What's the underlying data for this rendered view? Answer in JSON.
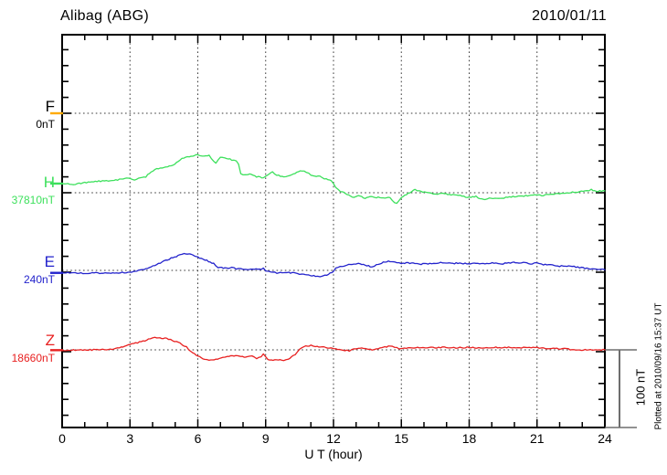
{
  "header": {
    "station": "Alibag (ABG)",
    "date": "2010/01/11"
  },
  "x_axis": {
    "label": "U T (hour)",
    "ticks": [
      "0",
      "3",
      "6",
      "9",
      "12",
      "15",
      "18",
      "21",
      "24"
    ]
  },
  "scale_bar": {
    "label": "100 nT",
    "value_nT": 100
  },
  "footer_note": "Plotted at 2010/09/16 15:37 UT",
  "chart_data": {
    "type": "line",
    "title": "Alibag (ABG) geomagnetic components magnetogram, 2010/01/11",
    "xlabel": "U T (hour)",
    "x_range": [
      0,
      24
    ],
    "x_major_tick": 3,
    "x_minor_tick": 1,
    "grid": "dotted verticals every 3 h, dotted horizontal baselines per component",
    "scale_bar_nT": 100,
    "minor_tick_nT": 20,
    "baseline_separation_nT": 100,
    "points_format": "[hour_UT, offset_nT_from_baseline]",
    "series": [
      {
        "name": "F",
        "baseline_label": "0nT",
        "baseline_nT": 0,
        "color": "#FFAA00",
        "points": []
      },
      {
        "name": "H",
        "baseline_label": "37810nT",
        "baseline_nT": 37810,
        "color": "#3DE05C",
        "points": [
          [
            0,
            11.8
          ],
          [
            0.5,
            10.6
          ],
          [
            1,
            13
          ],
          [
            1.7,
            15
          ],
          [
            2.3,
            16
          ],
          [
            3,
            19.2
          ],
          [
            3.2,
            16.8
          ],
          [
            3.7,
            20.8
          ],
          [
            4.1,
            30.6
          ],
          [
            4.5,
            32.6
          ],
          [
            4.9,
            35.6
          ],
          [
            5.3,
            44.3
          ],
          [
            5.7,
            47.4
          ],
          [
            6,
            49
          ],
          [
            6.2,
            47
          ],
          [
            6.5,
            48.2
          ],
          [
            6.7,
            40.4
          ],
          [
            6.8,
            38.5
          ],
          [
            7,
            46.2
          ],
          [
            7.2,
            45
          ],
          [
            7.5,
            42.4
          ],
          [
            7.7,
            41.2
          ],
          [
            7.8,
            36.5
          ],
          [
            7.9,
            24.7
          ],
          [
            8.1,
            22.7
          ],
          [
            8.3,
            23.9
          ],
          [
            8.6,
            20.8
          ],
          [
            8.9,
            19.6
          ],
          [
            9,
            21.5
          ],
          [
            9.2,
            25.5
          ],
          [
            9.3,
            26.7
          ],
          [
            9.5,
            22.7
          ],
          [
            9.8,
            20.8
          ],
          [
            10,
            22
          ],
          [
            10.3,
            25.5
          ],
          [
            10.6,
            28.6
          ],
          [
            10.8,
            26.7
          ],
          [
            11,
            22.7
          ],
          [
            11.4,
            20.8
          ],
          [
            11.6,
            18
          ],
          [
            11.9,
            16.1
          ],
          [
            12.1,
            7.1
          ],
          [
            12.3,
            2
          ],
          [
            12.6,
            -2
          ],
          [
            12.9,
            -5.9
          ],
          [
            13.1,
            -3.9
          ],
          [
            13.4,
            -6.7
          ],
          [
            13.7,
            -4.7
          ],
          [
            13.9,
            -5.9
          ],
          [
            14.2,
            -6.7
          ],
          [
            14.5,
            -5.9
          ],
          [
            14.7,
            -12.6
          ],
          [
            14.8,
            -13.8
          ],
          [
            15,
            -6.7
          ],
          [
            15.3,
            -0.8
          ],
          [
            15.6,
            3.9
          ],
          [
            15.8,
            2
          ],
          [
            16.1,
            0.4
          ],
          [
            16.4,
            -0.8
          ],
          [
            16.6,
            -2
          ],
          [
            16.9,
            -0.8
          ],
          [
            17.2,
            -2.7
          ],
          [
            17.6,
            -3.9
          ],
          [
            18,
            -5.9
          ],
          [
            18.3,
            -4.7
          ],
          [
            18.4,
            -7.4
          ],
          [
            18.7,
            -8.6
          ],
          [
            18.9,
            -6.7
          ],
          [
            19.3,
            -7.4
          ],
          [
            19.7,
            -5.9
          ],
          [
            20.1,
            -4.7
          ],
          [
            20.5,
            -3.9
          ],
          [
            20.9,
            -2.7
          ],
          [
            21.2,
            -3.5
          ],
          [
            21.6,
            -2
          ],
          [
            22,
            -0.8
          ],
          [
            22.4,
            0
          ],
          [
            22.8,
            1.2
          ],
          [
            23.2,
            2
          ],
          [
            23.4,
            3.9
          ],
          [
            23.7,
            2
          ],
          [
            24,
            2.4
          ]
        ]
      },
      {
        "name": "E",
        "baseline_label": "240nT",
        "baseline_nT": 240,
        "color": "#2323CC",
        "points": [
          [
            0,
            -3.2
          ],
          [
            1,
            -3.5
          ],
          [
            2.4,
            -3.2
          ],
          [
            3,
            -2.4
          ],
          [
            3.3,
            -0.8
          ],
          [
            3.7,
            2.4
          ],
          [
            4.1,
            6.7
          ],
          [
            4.5,
            11.8
          ],
          [
            4.9,
            16.5
          ],
          [
            5.2,
            19.6
          ],
          [
            5.4,
            21.2
          ],
          [
            5.7,
            20.4
          ],
          [
            6,
            17.3
          ],
          [
            6.4,
            12.6
          ],
          [
            6.7,
            8.6
          ],
          [
            6.9,
            3.9
          ],
          [
            7.2,
            2.7
          ],
          [
            7.5,
            3.5
          ],
          [
            7.7,
            2
          ],
          [
            7.9,
            2.4
          ],
          [
            8.2,
            0.8
          ],
          [
            8.5,
            1.5
          ],
          [
            8.8,
            0.8
          ],
          [
            8.9,
            2.7
          ],
          [
            9,
            0
          ],
          [
            9.3,
            -2
          ],
          [
            9.5,
            -3.2
          ],
          [
            9.8,
            -2.4
          ],
          [
            10.1,
            -3.2
          ],
          [
            10.4,
            -3.9
          ],
          [
            10.6,
            -5.1
          ],
          [
            10.9,
            -6.2
          ],
          [
            11.2,
            -7.1
          ],
          [
            11.4,
            -7.9
          ],
          [
            11.7,
            -6.2
          ],
          [
            12,
            -1.2
          ],
          [
            12.1,
            2.7
          ],
          [
            12.3,
            4.7
          ],
          [
            12.6,
            6.7
          ],
          [
            12.9,
            7.9
          ],
          [
            13.1,
            8.6
          ],
          [
            13.4,
            6.7
          ],
          [
            13.7,
            4.7
          ],
          [
            13.9,
            6.7
          ],
          [
            14.2,
            10.6
          ],
          [
            14.5,
            11.8
          ],
          [
            14.8,
            10.6
          ],
          [
            15,
            9.4
          ],
          [
            15.3,
            9.8
          ],
          [
            15.6,
            8.6
          ],
          [
            15.8,
            7.9
          ],
          [
            16.1,
            8.6
          ],
          [
            16.5,
            9.4
          ],
          [
            16.9,
            10.2
          ],
          [
            17.2,
            8.6
          ],
          [
            17.5,
            9.4
          ],
          [
            17.9,
            8.6
          ],
          [
            18.3,
            9.4
          ],
          [
            18.7,
            8.6
          ],
          [
            19.1,
            9.4
          ],
          [
            19.5,
            8.6
          ],
          [
            19.9,
            10.2
          ],
          [
            20.2,
            9.4
          ],
          [
            20.4,
            10.2
          ],
          [
            20.7,
            8.6
          ],
          [
            21,
            9.4
          ],
          [
            21.2,
            7.9
          ],
          [
            21.6,
            6.7
          ],
          [
            22,
            5.5
          ],
          [
            22.4,
            5.9
          ],
          [
            22.8,
            3.9
          ],
          [
            23.2,
            2.7
          ],
          [
            23.6,
            1.5
          ],
          [
            24,
            0.8
          ]
        ]
      },
      {
        "name": "Z",
        "baseline_label": "18660nT",
        "baseline_nT": 18660,
        "color": "#E82020",
        "points": [
          [
            0,
            -0.4
          ],
          [
            1,
            0
          ],
          [
            1.7,
            0
          ],
          [
            2.3,
            0.8
          ],
          [
            3,
            6.7
          ],
          [
            3.5,
            10.6
          ],
          [
            3.9,
            14.1
          ],
          [
            4.1,
            15.7
          ],
          [
            4.4,
            15.3
          ],
          [
            4.7,
            14.1
          ],
          [
            4.9,
            12.1
          ],
          [
            5.2,
            8.6
          ],
          [
            5.5,
            3.5
          ],
          [
            5.7,
            -2.4
          ],
          [
            6,
            -8.2
          ],
          [
            6.3,
            -12.1
          ],
          [
            6.5,
            -13.3
          ],
          [
            6.8,
            -12.1
          ],
          [
            7.1,
            -10.2
          ],
          [
            7.3,
            -8.2
          ],
          [
            7.6,
            -7.4
          ],
          [
            7.9,
            -8.2
          ],
          [
            8.2,
            -9.4
          ],
          [
            8.4,
            -8.2
          ],
          [
            8.6,
            -10.9
          ],
          [
            8.8,
            -9.4
          ],
          [
            8.9,
            -4.7
          ],
          [
            9.1,
            -12.1
          ],
          [
            9.4,
            -13.3
          ],
          [
            9.8,
            -13.3
          ],
          [
            10,
            -12.1
          ],
          [
            10.3,
            -6.2
          ],
          [
            10.5,
            1.5
          ],
          [
            10.7,
            4.7
          ],
          [
            11,
            5.5
          ],
          [
            11.2,
            4.7
          ],
          [
            11.5,
            3.5
          ],
          [
            11.9,
            2.4
          ],
          [
            12.1,
            1.5
          ],
          [
            12.5,
            -0.4
          ],
          [
            12.7,
            -1.5
          ],
          [
            12.9,
            1.5
          ],
          [
            13.1,
            2.4
          ],
          [
            13.4,
            1.5
          ],
          [
            13.7,
            0.4
          ],
          [
            13.9,
            1.5
          ],
          [
            14.2,
            3.5
          ],
          [
            14.5,
            4.7
          ],
          [
            14.7,
            3.5
          ],
          [
            14.9,
            1.5
          ],
          [
            15.3,
            2.4
          ],
          [
            15.8,
            3.2
          ],
          [
            16.4,
            2.7
          ],
          [
            16.9,
            3.2
          ],
          [
            17.5,
            2.7
          ],
          [
            18,
            3.2
          ],
          [
            18.5,
            2.4
          ],
          [
            19.1,
            3.5
          ],
          [
            19.5,
            2.7
          ],
          [
            19.9,
            3.2
          ],
          [
            20.4,
            2.7
          ],
          [
            21,
            3.2
          ],
          [
            21.2,
            2.4
          ],
          [
            21.8,
            1.5
          ],
          [
            22.3,
            1.2
          ],
          [
            22.8,
            -0.4
          ],
          [
            23.2,
            0.4
          ],
          [
            23.6,
            -0.4
          ],
          [
            24,
            0
          ]
        ]
      }
    ]
  }
}
